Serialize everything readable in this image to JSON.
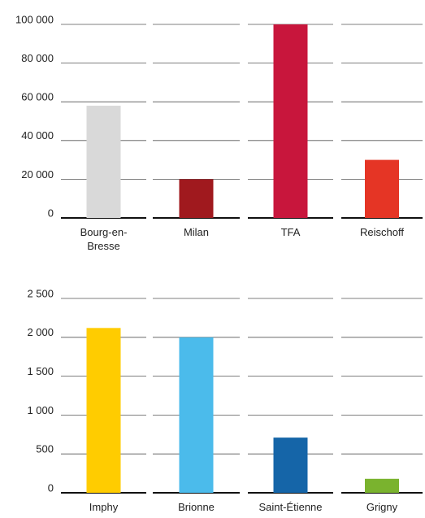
{
  "chart_data": [
    {
      "type": "bar",
      "categories": [
        "Bourg-en-Bresse",
        "Milan",
        "TFA",
        "Reischoff"
      ],
      "values": [
        58000,
        20000,
        100000,
        30000
      ],
      "colors": [
        "#d9d9d9",
        "#a0191e",
        "#c8163c",
        "#e53525"
      ],
      "ylim": [
        0,
        100000
      ],
      "yticks": [
        0,
        {
          "value": 20000,
          "label": "20 000"
        },
        {
          "value": 40000,
          "label": "40 000"
        },
        {
          "value": 60000,
          "label": "60 000"
        },
        {
          "value": 80000,
          "label": "80 000"
        },
        {
          "value": 100000,
          "label": "100 000"
        }
      ],
      "grid": true
    },
    {
      "type": "bar",
      "categories": [
        "Imphy",
        "Brionne",
        "Saint-Étienne",
        "Grigny"
      ],
      "values": [
        2120,
        2000,
        710,
        180
      ],
      "colors": [
        "#ffcc00",
        "#4bbbeb",
        "#1565a8",
        "#7ab32e"
      ],
      "ylim": [
        0,
        2500
      ],
      "yticks": [
        0,
        500,
        {
          "value": 1000,
          "label": "1 000"
        },
        {
          "value": 1500,
          "label": "1 500"
        },
        {
          "value": 2000,
          "label": "2 000"
        },
        {
          "value": 2500,
          "label": "2 500"
        }
      ],
      "grid": true
    }
  ]
}
